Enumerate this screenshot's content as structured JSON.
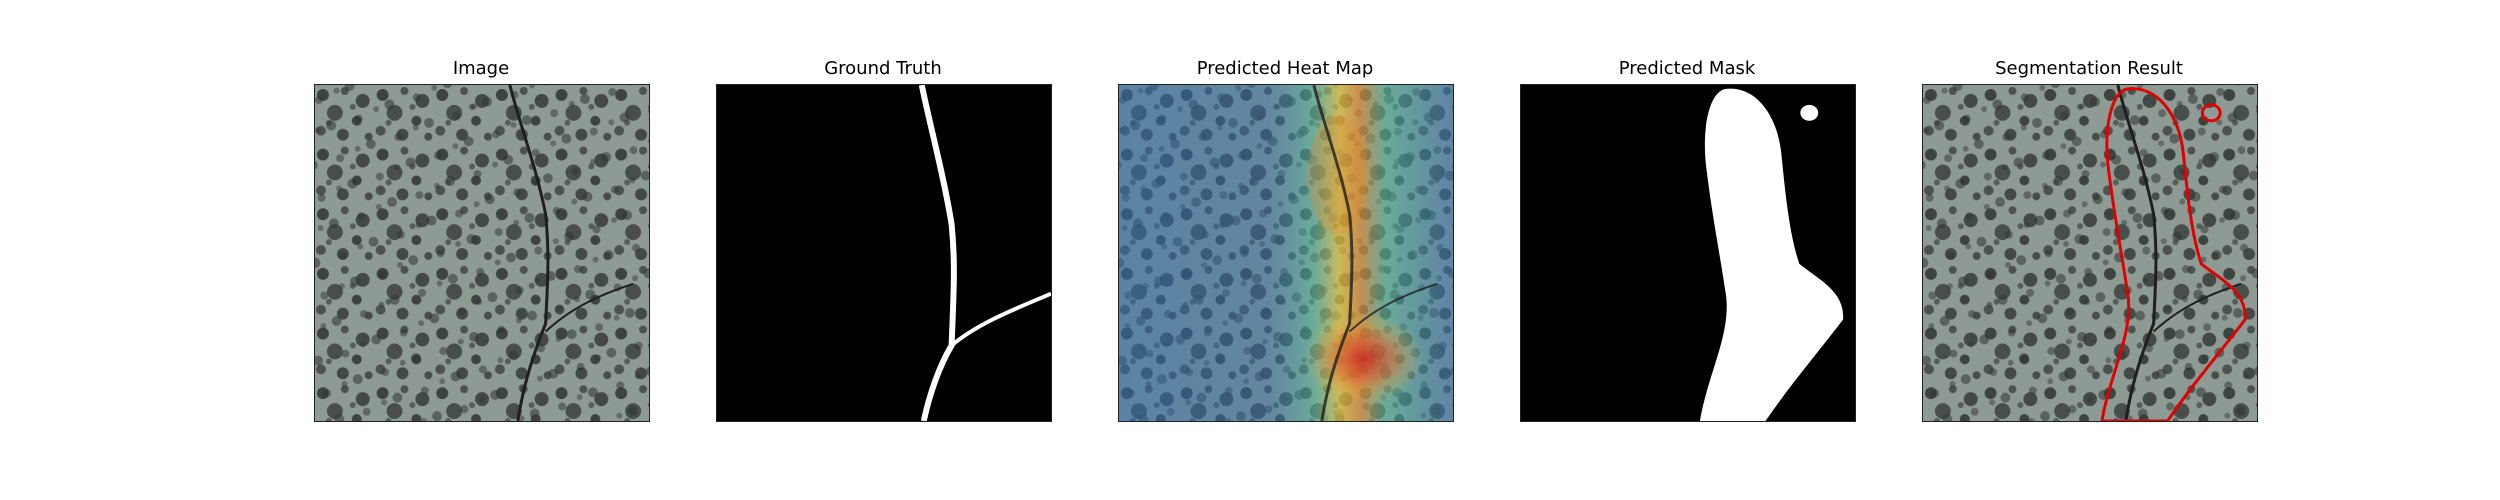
{
  "panels": [
    {
      "title": "Image"
    },
    {
      "title": "Ground Truth"
    },
    {
      "title": "Predicted Heat Map"
    },
    {
      "title": "Predicted Mask"
    },
    {
      "title": "Segmentation Result"
    }
  ],
  "colors": {
    "texture_base": "#8e9a94",
    "texture_spot": "#2f3432",
    "crack": "#1e1f1e",
    "mask_bg": "#000000",
    "mask_fg": "#ffffff",
    "contour": "#e00000",
    "heat_low": "#2f6fb0",
    "heat_mid": "#4fb8a0",
    "heat_high": "#e8c840",
    "heat_peak": "#c82020"
  }
}
